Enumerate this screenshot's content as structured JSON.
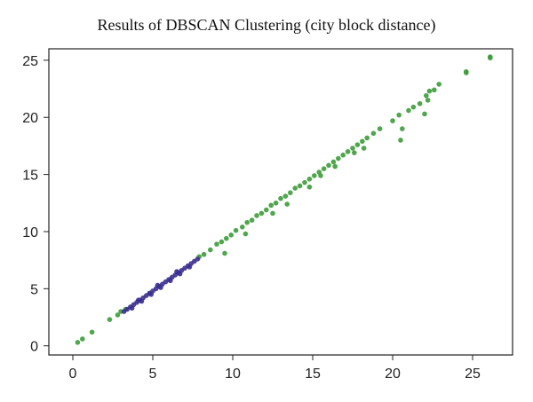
{
  "chart_data": {
    "type": "scatter",
    "title": "Results of DBSCAN Clustering (city block distance)",
    "xlabel": "",
    "ylabel": "",
    "xlim": [
      -1.5,
      27.5
    ],
    "ylim": [
      -0.8,
      26
    ],
    "xticks": [
      "0",
      "5",
      "10",
      "15",
      "20",
      "25"
    ],
    "yticks": [
      "0",
      "5",
      "10",
      "15",
      "20",
      "25"
    ],
    "grid": false,
    "colors": {
      "cluster_a": "#3d9c3a",
      "cluster_b": "#3b2f8f"
    },
    "series": [
      {
        "points": [
          [
            0.3,
            0.3
          ],
          [
            0.6,
            0.6
          ],
          [
            1.2,
            1.2
          ],
          [
            2.3,
            2.3
          ],
          [
            2.8,
            2.7
          ],
          [
            3.0,
            3.0
          ],
          [
            3.3,
            3.2
          ],
          [
            4.8,
            4.6
          ],
          [
            7.9,
            7.8
          ],
          [
            8.2,
            8.0
          ],
          [
            8.6,
            8.4
          ],
          [
            9.0,
            8.9
          ],
          [
            9.3,
            9.1
          ],
          [
            9.6,
            9.4
          ],
          [
            9.9,
            9.7
          ],
          [
            10.2,
            10.1
          ],
          [
            10.6,
            10.4
          ],
          [
            10.9,
            10.8
          ],
          [
            11.2,
            11.0
          ],
          [
            11.5,
            11.4
          ],
          [
            11.8,
            11.6
          ],
          [
            12.1,
            11.9
          ],
          [
            12.4,
            12.3
          ],
          [
            12.7,
            12.5
          ],
          [
            13.0,
            12.9
          ],
          [
            13.3,
            13.1
          ],
          [
            13.6,
            13.4
          ],
          [
            13.9,
            13.8
          ],
          [
            14.2,
            14.0
          ],
          [
            14.5,
            14.3
          ],
          [
            14.8,
            14.6
          ],
          [
            15.1,
            14.9
          ],
          [
            15.4,
            15.2
          ],
          [
            15.7,
            15.5
          ],
          [
            16.0,
            15.8
          ],
          [
            16.3,
            16.1
          ],
          [
            16.6,
            16.4
          ],
          [
            16.9,
            16.7
          ],
          [
            17.2,
            17.0
          ],
          [
            17.5,
            17.3
          ],
          [
            17.8,
            17.6
          ],
          [
            18.1,
            17.9
          ],
          [
            18.4,
            18.2
          ],
          [
            18.8,
            18.6
          ],
          [
            19.2,
            19.0
          ],
          [
            9.5,
            8.1
          ],
          [
            10.8,
            9.8
          ],
          [
            12.5,
            11.6
          ],
          [
            13.4,
            12.4
          ],
          [
            14.8,
            13.9
          ],
          [
            15.5,
            14.9
          ],
          [
            16.4,
            15.7
          ],
          [
            17.6,
            16.9
          ],
          [
            18.2,
            17.3
          ],
          [
            20.0,
            19.7
          ],
          [
            20.4,
            20.2
          ],
          [
            20.6,
            19.0
          ],
          [
            20.5,
            18.0
          ],
          [
            21.0,
            20.6
          ],
          [
            21.3,
            20.9
          ],
          [
            21.7,
            21.2
          ],
          [
            22.0,
            20.3
          ],
          [
            22.2,
            21.5
          ],
          [
            22.1,
            21.9
          ],
          [
            22.3,
            22.3
          ],
          [
            22.6,
            22.4
          ],
          [
            22.9,
            22.9
          ],
          [
            24.6,
            24.0
          ],
          [
            24.6,
            23.9
          ],
          [
            26.1,
            25.2
          ],
          [
            26.1,
            25.3
          ]
        ]
      },
      {
        "points": [
          [
            3.2,
            3.0
          ],
          [
            3.4,
            3.2
          ],
          [
            3.6,
            3.4
          ],
          [
            3.8,
            3.6
          ],
          [
            4.0,
            3.8
          ],
          [
            4.2,
            4.0
          ],
          [
            4.4,
            4.2
          ],
          [
            4.6,
            4.4
          ],
          [
            4.8,
            4.6
          ],
          [
            5.0,
            4.8
          ],
          [
            5.2,
            5.0
          ],
          [
            5.4,
            5.2
          ],
          [
            5.6,
            5.4
          ],
          [
            5.8,
            5.6
          ],
          [
            6.0,
            5.8
          ],
          [
            6.2,
            6.0
          ],
          [
            6.4,
            6.2
          ],
          [
            6.6,
            6.4
          ],
          [
            6.8,
            6.6
          ],
          [
            7.0,
            6.8
          ],
          [
            7.2,
            7.0
          ],
          [
            7.4,
            7.2
          ],
          [
            7.6,
            7.4
          ],
          [
            7.8,
            7.6
          ],
          [
            3.7,
            3.3
          ],
          [
            4.3,
            3.9
          ],
          [
            4.9,
            4.5
          ],
          [
            5.5,
            5.1
          ],
          [
            6.1,
            5.7
          ],
          [
            6.7,
            6.3
          ],
          [
            7.3,
            6.9
          ],
          [
            4.1,
            4.0
          ],
          [
            5.3,
            5.3
          ],
          [
            6.5,
            6.5
          ]
        ]
      }
    ]
  }
}
